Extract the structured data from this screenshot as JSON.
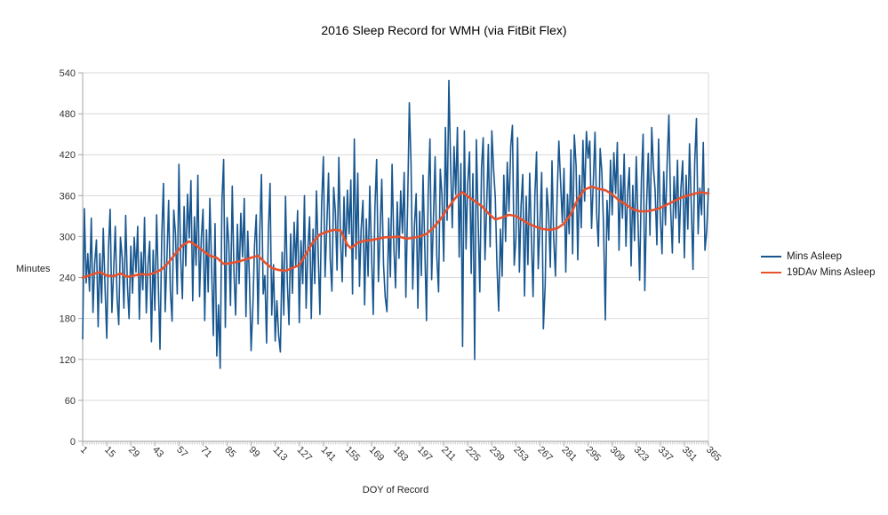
{
  "page": {
    "background": "#ffffff"
  },
  "chart_data": {
    "type": "line",
    "title": "2016 Sleep Record for WMH (via FitBit Flex)",
    "xlabel": "DOY of Record",
    "ylabel": "Minutes",
    "xlim": [
      1,
      365
    ],
    "ylim": [
      0,
      540
    ],
    "yticks": [
      0,
      60,
      120,
      180,
      240,
      300,
      360,
      420,
      480,
      540
    ],
    "xticks": [
      1,
      15,
      29,
      43,
      57,
      71,
      85,
      99,
      113,
      127,
      141,
      155,
      169,
      183,
      197,
      211,
      225,
      239,
      253,
      267,
      281,
      295,
      309,
      323,
      337,
      351,
      365
    ],
    "grid": "horizontal",
    "legend_position": "right",
    "colors": {
      "gridline": "#d9d9d9",
      "axis": "#a6a6a6",
      "minor_tick": "#c4c4c4"
    },
    "series": [
      {
        "name": "Mins Asleep",
        "color": "#17568f",
        "stroke_width": 1.6,
        "x_start": 1,
        "values": [
          150,
          341,
          232,
          275,
          220,
          327,
          189,
          260,
          295,
          168,
          275,
          203,
          312,
          229,
          151,
          282,
          340,
          189,
          248,
          315,
          210,
          171,
          299,
          268,
          195,
          331,
          230,
          180,
          286,
          217,
          299,
          248,
          315,
          179,
          277,
          222,
          328,
          188,
          258,
          293,
          146,
          280,
          192,
          332,
          231,
          135,
          301,
          378,
          190,
          268,
          353,
          222,
          176,
          339,
          304,
          216,
          406,
          270,
          209,
          344,
          257,
          362,
          298,
          382,
          206,
          329,
          258,
          390,
          212,
          298,
          340,
          177,
          310,
          219,
          356,
          252,
          155,
          319,
          125,
          200,
          107,
          353,
          413,
          167,
          328,
          290,
          199,
          374,
          248,
          185,
          318,
          231,
          334,
          270,
          356,
          183,
          308,
          239,
          133,
          199,
          288,
          332,
          172,
          304,
          391,
          216,
          243,
          144,
          306,
          378,
          185,
          259,
          147,
          206,
          155,
          131,
          277,
          185,
          359,
          234,
          171,
          304,
          217,
          321,
          257,
          338,
          174,
          294,
          231,
          360,
          195,
          283,
          329,
          180,
          311,
          231,
          367,
          274,
          186,
          346,
          417,
          241,
          313,
          393,
          267,
          220,
          372,
          336,
          251,
          416,
          296,
          234,
          358,
          271,
          368,
          304,
          383,
          216,
          443,
          267,
          393,
          227,
          311,
          353,
          200,
          326,
          242,
          374,
          277,
          186,
          343,
          413,
          234,
          305,
          384,
          258,
          211,
          190,
          327,
          241,
          406,
          285,
          225,
          351,
          268,
          367,
          305,
          394,
          211,
          340,
          496,
          408,
          223,
          317,
          363,
          195,
          337,
          243,
          390,
          284,
          177,
          362,
          443,
          237,
          321,
          417,
          271,
          219,
          399,
          361,
          264,
          460,
          324,
          529,
          408,
          313,
          432,
          362,
          460,
          270,
          407,
          139,
          455,
          282,
          378,
          424,
          246,
          392,
          120,
          442,
          328,
          219,
          400,
          445,
          266,
          345,
          435,
          285,
          455,
          401,
          357,
          258,
          191,
          311,
          242,
          390,
          293,
          409,
          337,
          432,
          463,
          258,
          298,
          445,
          248,
          345,
          391,
          213,
          359,
          259,
          393,
          300,
          212,
          359,
          424,
          253,
          320,
          394,
          165,
          228,
          371,
          336,
          255,
          411,
          298,
          242,
          361,
          440,
          379,
          321,
          400,
          248,
          362,
          304,
          427,
          275,
          449,
          404,
          266,
          390,
          313,
          441,
          352,
          454,
          415,
          440,
          312,
          378,
          453,
          332,
          286,
          429,
          394,
          313,
          178,
          353,
          295,
          412,
          332,
          423,
          363,
          438,
          280,
          390,
          327,
          421,
          286,
          364,
          401,
          257,
          375,
          294,
          417,
          324,
          236,
          384,
          450,
          221,
          346,
          422,
          302,
          460,
          401,
          368,
          288,
          443,
          331,
          275,
          395,
          317,
          411,
          478,
          340,
          276,
          388,
          327,
          412,
          291,
          371,
          411,
          269,
          390,
          311,
          436,
          345,
          252,
          407,
          473,
          304,
          371,
          332,
          438,
          280,
          310,
          370
        ]
      },
      {
        "name": "19DAv Mins Asleep",
        "color": "#e8512b",
        "stroke_width": 2.6,
        "points_day": [
          1,
          7,
          11,
          15,
          19,
          23,
          27,
          31,
          35,
          39,
          43,
          47,
          51,
          55,
          59,
          63,
          67,
          71,
          75,
          79,
          83,
          87,
          91,
          95,
          99,
          103,
          107,
          111,
          115,
          119,
          123,
          127,
          131,
          135,
          139,
          143,
          147,
          151,
          155,
          157,
          161,
          165,
          169,
          173,
          177,
          181,
          185,
          189,
          193,
          197,
          201,
          205,
          209,
          213,
          217,
          219,
          222,
          225,
          229,
          233,
          237,
          241,
          245,
          249,
          253,
          257,
          261,
          265,
          269,
          273,
          277,
          281,
          285,
          289,
          293,
          297,
          301,
          305,
          309,
          313,
          317,
          321,
          325,
          329,
          333,
          337,
          341,
          345,
          349,
          353,
          357,
          361,
          365
        ],
        "points_value": [
          240,
          245,
          248,
          243,
          242,
          246,
          241,
          243,
          245,
          244,
          247,
          252,
          262,
          275,
          287,
          293,
          287,
          279,
          272,
          269,
          260,
          261,
          263,
          266,
          269,
          272,
          262,
          254,
          251,
          250,
          254,
          258,
          275,
          292,
          303,
          307,
          310,
          309,
          288,
          283,
          291,
          294,
          295,
          297,
          299,
          299,
          300,
          297,
          298,
          300,
          304,
          313,
          325,
          340,
          354,
          360,
          365,
          359,
          352,
          345,
          334,
          325,
          328,
          332,
          330,
          324,
          318,
          314,
          311,
          310,
          312,
          319,
          333,
          355,
          369,
          373,
          370,
          368,
          362,
          353,
          347,
          340,
          337,
          337,
          339,
          342,
          347,
          352,
          357,
          360,
          363,
          365,
          363
        ]
      }
    ]
  }
}
